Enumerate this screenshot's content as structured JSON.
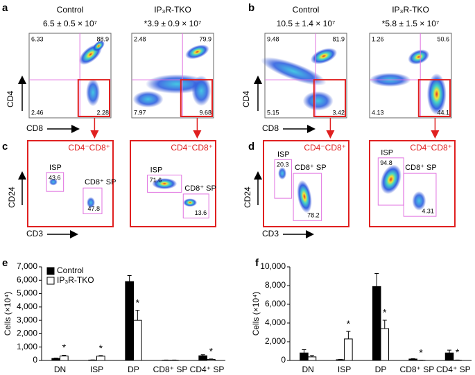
{
  "panel_labels": [
    "a",
    "b",
    "c",
    "d",
    "e",
    "f"
  ],
  "flow": [
    {
      "title": "Control",
      "count": "6.5 ± 0.5 × 10⁷",
      "quadrants": [
        "6.33",
        "88.9",
        "2.46",
        "2.28"
      ]
    },
    {
      "title": "IP₃R-TKO",
      "count": "*3.9 ± 0.9 × 10⁷",
      "quadrants": [
        "2.48",
        "79.9",
        "7.97",
        "9.68"
      ]
    },
    {
      "title": "Control",
      "count": "10.5 ± 1.4 × 10⁷",
      "quadrants": [
        "9.48",
        "81.9",
        "5.15",
        "3.42"
      ]
    },
    {
      "title": "IP₃R-TKO",
      "count": "*5.8 ± 1.5 × 10⁷",
      "quadrants": [
        "1.26",
        "50.6",
        "4.13",
        "44.1"
      ]
    }
  ],
  "flow_axes": {
    "y": "CD4",
    "x": "CD8"
  },
  "gated": [
    {
      "title": "CD4⁻CD8⁺",
      "isp": "ISP",
      "isp_value": "43.6",
      "sp": "CD8⁺ SP",
      "sp_value": "47.8"
    },
    {
      "title": "CD4⁻CD8⁺",
      "isp": "ISP",
      "isp_value": "71.6",
      "sp": "CD8⁺ SP",
      "sp_value": "13.6"
    },
    {
      "title": "CD4⁻CD8⁺",
      "isp": "ISP",
      "isp_value": "20.3",
      "sp": "CD8⁺ SP",
      "sp_value": "78.2"
    },
    {
      "title": "CD4⁻CD8⁺",
      "isp": "ISP",
      "isp_value": "94.8",
      "sp": "CD8⁺ SP",
      "sp_value": "4.31"
    }
  ],
  "gated_axes": {
    "y": "CD24",
    "x": "CD3"
  },
  "chart_data": [
    {
      "type": "bar",
      "y_label": "Cells (×10⁴)",
      "categories": [
        "DN",
        "ISP",
        "DP",
        "CD8⁺ SP",
        "CD4⁺ SP"
      ],
      "series": [
        {
          "name": "Control",
          "color": "#000000",
          "values": [
            150,
            30,
            5900,
            20,
            350
          ],
          "errors": [
            30,
            10,
            450,
            10,
            80
          ]
        },
        {
          "name": "IP₃R-TKO",
          "color": "#ffffff",
          "values": [
            330,
            320,
            3000,
            20,
            80
          ],
          "errors": [
            60,
            40,
            750,
            10,
            30
          ]
        }
      ],
      "stars": [
        "*",
        "*",
        "*",
        null,
        "*"
      ],
      "legend": true,
      "ylim": [
        0,
        7000
      ],
      "yticks": [
        0,
        {
          "value": 1000,
          "label": "1,000"
        },
        {
          "value": 2000,
          "label": "2,000"
        },
        {
          "value": 3000,
          "label": "3,000"
        },
        {
          "value": 4000,
          "label": "4,000"
        },
        {
          "value": 5000,
          "label": "5,000"
        },
        {
          "value": 6000,
          "label": "6,000"
        },
        {
          "value": 7000,
          "label": "7,000"
        }
      ]
    },
    {
      "type": "bar",
      "y_label": "Cells (×10⁴)",
      "categories": [
        "DN",
        "ISP",
        "DP",
        "CD8⁺ SP",
        "CD4⁺ SP"
      ],
      "series": [
        {
          "color": "#000000",
          "values": [
            800,
            80,
            7900,
            150,
            800
          ],
          "errors": [
            350,
            30,
            1400,
            40,
            300
          ]
        },
        {
          "color": "#ffffff",
          "values": [
            380,
            2300,
            3400,
            20,
            30
          ],
          "errors": [
            150,
            800,
            900,
            10,
            20
          ]
        }
      ],
      "stars": [
        null,
        "*",
        "*",
        "*",
        "*"
      ],
      "legend": false,
      "ylim": [
        0,
        10000
      ],
      "yticks": [
        0,
        {
          "value": 2000,
          "label": "2,000"
        },
        {
          "value": 4000,
          "label": "4,000"
        },
        {
          "value": 6000,
          "label": "6,000"
        },
        {
          "value": 8000,
          "label": "8,000"
        },
        {
          "value": 10000,
          "label": "10,000"
        }
      ]
    }
  ]
}
